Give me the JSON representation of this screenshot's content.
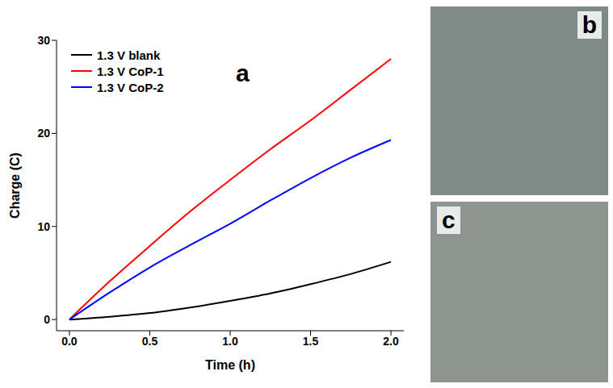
{
  "chart_data": {
    "type": "line",
    "x_label": "Time (h)",
    "y_label": "Charge (C)",
    "annotations": [
      "a"
    ],
    "x": [
      0,
      0.25,
      0.5,
      0.75,
      1.0,
      1.25,
      1.5,
      1.75,
      2.0
    ],
    "series": [
      {
        "name": "1.3 V blank",
        "color": "#000000",
        "values": [
          0,
          0.3,
          0.7,
          1.3,
          2.0,
          2.8,
          3.8,
          4.9,
          6.2
        ]
      },
      {
        "name": "1.3 V CoP-1",
        "color": "#ff0000",
        "values": [
          0,
          4.1,
          7.9,
          11.6,
          15.0,
          18.3,
          21.4,
          24.7,
          28.0
        ]
      },
      {
        "name": "1.3 V CoP-2",
        "color": "#0000ff",
        "values": [
          0,
          2.9,
          5.6,
          8.0,
          10.3,
          12.8,
          15.2,
          17.4,
          19.3
        ]
      }
    ],
    "xlim": [
      -0.08,
      2.08
    ],
    "xticks": [
      {
        "value": 0,
        "label": "0.0"
      },
      0.5,
      {
        "value": 1,
        "label": "1.0"
      },
      1.5,
      {
        "value": 2,
        "label": "2.0"
      }
    ],
    "ylim": [
      -1.2,
      30
    ],
    "yticks": [
      0,
      10,
      20,
      30
    ],
    "legend": "upper left"
  },
  "photos": [
    {
      "label": "b"
    },
    {
      "label": "c"
    }
  ]
}
